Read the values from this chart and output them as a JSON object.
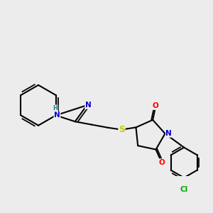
{
  "bg_color": "#ececec",
  "bond_color": "#000000",
  "bond_lw": 1.5,
  "atom_colors": {
    "N": "#0000cc",
    "O": "#ff0000",
    "S": "#cccc00",
    "Cl": "#00aa00",
    "H": "#008888",
    "C": "#000000"
  },
  "font_size_atom": 7.5,
  "font_size_H": 6.0
}
